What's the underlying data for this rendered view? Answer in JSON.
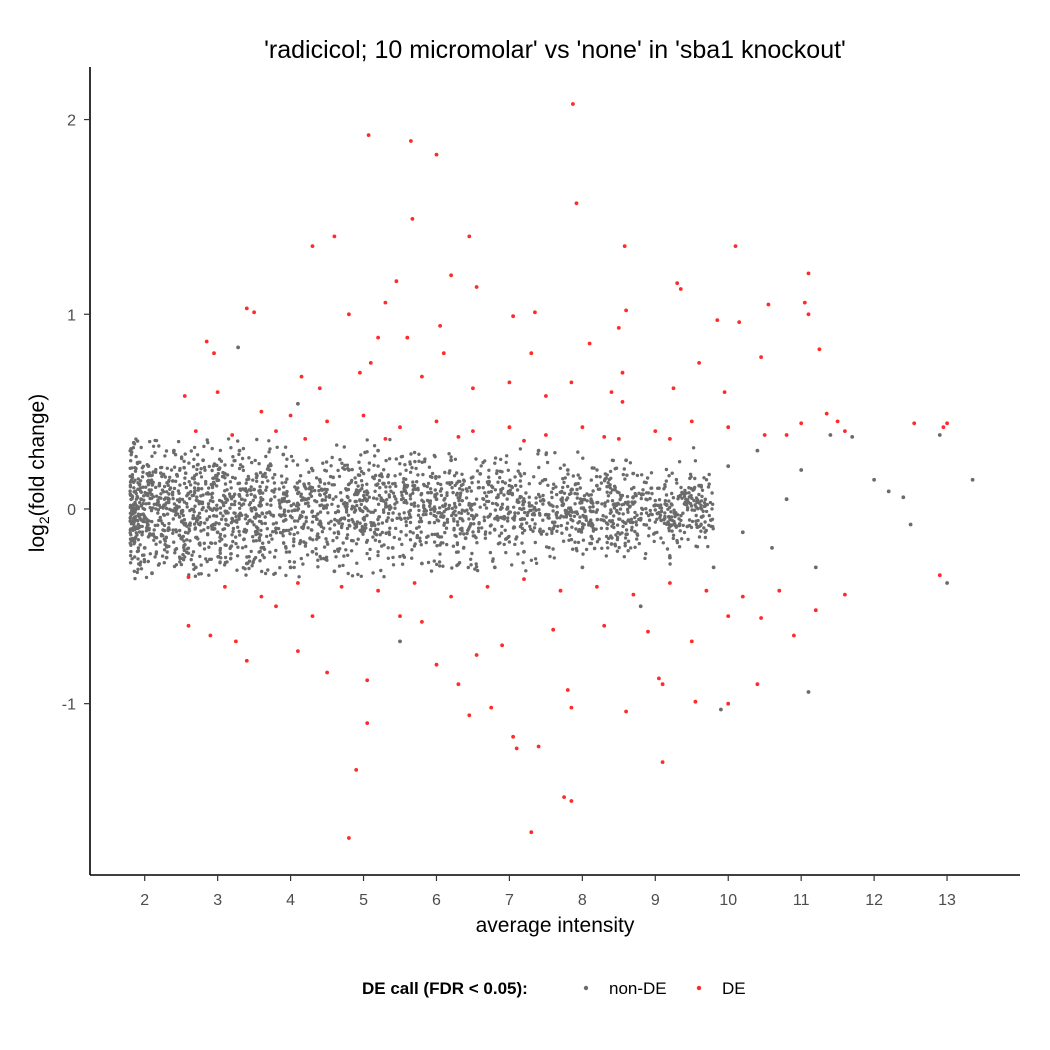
{
  "chart_data": {
    "type": "scatter",
    "title": "'radicicol; 10 micromolar' vs 'none' in 'sba1 knockout'",
    "xlabel": "average intensity",
    "ylabel_main": "log",
    "ylabel_sub": "2",
    "ylabel_rest": "(fold change)",
    "xlim": [
      1.25,
      14.0
    ],
    "ylim": [
      -1.88,
      2.27
    ],
    "xticks": [
      2,
      3,
      4,
      5,
      6,
      7,
      8,
      9,
      10,
      11,
      12,
      13
    ],
    "xtick_labels": [
      "2",
      "3",
      "4",
      "5",
      "6",
      "7",
      "8",
      "9",
      "10",
      "11",
      "12",
      "13"
    ],
    "yticks": [
      -1,
      0,
      1,
      2
    ],
    "ytick_labels": [
      "-1",
      "0",
      "1",
      "2"
    ],
    "grid": false,
    "legend": {
      "title": "DE call (FDR < 0.05):",
      "position": "bottom",
      "items": [
        {
          "label": "non-DE",
          "color": "#6b6b6b"
        },
        {
          "label": "DE",
          "color": "#ff2a2a"
        }
      ]
    },
    "series": [
      {
        "name": "non-DE",
        "color": "#6b6b6b",
        "note_points": "highlighted sample of ~3000 genes; bulk band rendered from listed points",
        "points": [
          [
            1.85,
            0.34
          ],
          [
            1.9,
            -0.1
          ],
          [
            1.95,
            0.05
          ],
          [
            2.0,
            -0.2
          ],
          [
            2.05,
            0.22
          ],
          [
            2.1,
            -0.33
          ],
          [
            2.2,
            0.12
          ],
          [
            2.3,
            -0.25
          ],
          [
            2.4,
            0.3
          ],
          [
            2.5,
            -0.15
          ],
          [
            2.6,
            0.08
          ],
          [
            2.7,
            -0.3
          ],
          [
            2.8,
            0.25
          ],
          [
            2.9,
            0.0
          ],
          [
            3.0,
            -0.12
          ],
          [
            3.1,
            0.18
          ],
          [
            3.2,
            -0.05
          ],
          [
            3.3,
            0.3
          ],
          [
            3.28,
            0.83
          ],
          [
            3.4,
            -0.28
          ],
          [
            3.5,
            0.1
          ],
          [
            3.6,
            -0.2
          ],
          [
            3.7,
            0.22
          ],
          [
            3.8,
            -0.1
          ],
          [
            3.9,
            0.28
          ],
          [
            4.0,
            -0.3
          ],
          [
            4.1,
            0.54
          ],
          [
            4.2,
            0.05
          ],
          [
            4.3,
            -0.22
          ],
          [
            4.4,
            0.15
          ],
          [
            4.6,
            -0.32
          ],
          [
            4.8,
            0.2
          ],
          [
            5.0,
            -0.05
          ],
          [
            5.2,
            0.3
          ],
          [
            5.4,
            -0.2
          ],
          [
            5.6,
            0.12
          ],
          [
            5.8,
            -0.28
          ],
          [
            6.0,
            0.05
          ],
          [
            6.2,
            0.25
          ],
          [
            6.4,
            -0.15
          ],
          [
            6.6,
            0.18
          ],
          [
            6.8,
            -0.3
          ],
          [
            7.0,
            0.08
          ],
          [
            7.2,
            -0.22
          ],
          [
            7.4,
            0.3
          ],
          [
            7.6,
            -0.1
          ],
          [
            7.8,
            0.2
          ],
          [
            8.0,
            -0.3
          ],
          [
            8.2,
            0.12
          ],
          [
            8.4,
            -0.18
          ],
          [
            8.6,
            0.25
          ],
          [
            8.8,
            -0.05
          ],
          [
            9.0,
            0.02
          ],
          [
            9.2,
            -0.25
          ],
          [
            9.4,
            0.08
          ],
          [
            9.6,
            0.12
          ],
          [
            9.8,
            -0.3
          ],
          [
            10.0,
            0.22
          ],
          [
            10.2,
            -0.12
          ],
          [
            10.4,
            0.3
          ],
          [
            10.6,
            -0.2
          ],
          [
            10.8,
            0.05
          ],
          [
            11.0,
            0.2
          ],
          [
            11.2,
            -0.3
          ],
          [
            11.4,
            0.38
          ],
          [
            11.7,
            0.37
          ],
          [
            12.0,
            0.15
          ],
          [
            12.2,
            0.09
          ],
          [
            12.4,
            0.06
          ],
          [
            12.5,
            -0.08
          ],
          [
            12.9,
            0.38
          ],
          [
            13.0,
            -0.38
          ],
          [
            13.35,
            0.15
          ],
          [
            9.9,
            -1.03
          ],
          [
            11.1,
            -0.94
          ],
          [
            5.5,
            -0.68
          ],
          [
            8.8,
            -0.5
          ]
        ]
      },
      {
        "name": "DE",
        "color": "#ff2a2a",
        "points": [
          [
            7.87,
            2.08
          ],
          [
            5.07,
            1.92
          ],
          [
            5.65,
            1.89
          ],
          [
            6.0,
            1.82
          ],
          [
            7.92,
            1.57
          ],
          [
            5.67,
            1.49
          ],
          [
            4.3,
            1.35
          ],
          [
            6.45,
            1.4
          ],
          [
            4.6,
            1.4
          ],
          [
            8.58,
            1.35
          ],
          [
            10.1,
            1.35
          ],
          [
            6.2,
            1.2
          ],
          [
            11.1,
            1.21
          ],
          [
            9.3,
            1.16
          ],
          [
            9.35,
            1.13
          ],
          [
            5.45,
            1.17
          ],
          [
            6.55,
            1.14
          ],
          [
            5.3,
            1.06
          ],
          [
            3.4,
            1.03
          ],
          [
            3.5,
            1.01
          ],
          [
            7.05,
            0.99
          ],
          [
            7.35,
            1.01
          ],
          [
            8.6,
            1.02
          ],
          [
            11.05,
            1.06
          ],
          [
            11.1,
            1.0
          ],
          [
            10.55,
            1.05
          ],
          [
            9.85,
            0.97
          ],
          [
            10.15,
            0.96
          ],
          [
            6.05,
            0.94
          ],
          [
            8.5,
            0.93
          ],
          [
            2.85,
            0.86
          ],
          [
            2.95,
            0.8
          ],
          [
            4.8,
            1.0
          ],
          [
            5.2,
            0.88
          ],
          [
            5.1,
            0.75
          ],
          [
            5.6,
            0.88
          ],
          [
            6.1,
            0.8
          ],
          [
            7.3,
            0.8
          ],
          [
            8.1,
            0.85
          ],
          [
            8.55,
            0.7
          ],
          [
            9.6,
            0.75
          ],
          [
            10.45,
            0.78
          ],
          [
            11.25,
            0.82
          ],
          [
            4.15,
            0.68
          ],
          [
            4.4,
            0.62
          ],
          [
            4.95,
            0.7
          ],
          [
            5.8,
            0.68
          ],
          [
            6.5,
            0.62
          ],
          [
            7.0,
            0.65
          ],
          [
            7.5,
            0.58
          ],
          [
            7.85,
            0.65
          ],
          [
            8.4,
            0.6
          ],
          [
            8.55,
            0.55
          ],
          [
            9.25,
            0.62
          ],
          [
            9.95,
            0.6
          ],
          [
            2.55,
            0.58
          ],
          [
            3.0,
            0.6
          ],
          [
            3.6,
            0.5
          ],
          [
            4.0,
            0.48
          ],
          [
            4.5,
            0.45
          ],
          [
            5.0,
            0.48
          ],
          [
            5.5,
            0.42
          ],
          [
            6.0,
            0.45
          ],
          [
            6.5,
            0.4
          ],
          [
            7.0,
            0.42
          ],
          [
            7.5,
            0.38
          ],
          [
            8.0,
            0.42
          ],
          [
            8.5,
            0.36
          ],
          [
            9.0,
            0.4
          ],
          [
            9.5,
            0.45
          ],
          [
            10.0,
            0.42
          ],
          [
            10.5,
            0.38
          ],
          [
            11.0,
            0.44
          ],
          [
            11.35,
            0.49
          ],
          [
            11.5,
            0.45
          ],
          [
            11.6,
            0.4
          ],
          [
            12.55,
            0.44
          ],
          [
            12.95,
            0.42
          ],
          [
            13.0,
            0.44
          ],
          [
            2.7,
            0.4
          ],
          [
            3.2,
            0.38
          ],
          [
            3.8,
            0.4
          ],
          [
            4.2,
            0.36
          ],
          [
            5.3,
            0.36
          ],
          [
            6.3,
            0.37
          ],
          [
            7.2,
            0.35
          ],
          [
            8.3,
            0.37
          ],
          [
            9.2,
            0.36
          ],
          [
            10.8,
            0.38
          ],
          [
            2.6,
            -0.35
          ],
          [
            3.1,
            -0.4
          ],
          [
            3.6,
            -0.45
          ],
          [
            4.1,
            -0.38
          ],
          [
            4.7,
            -0.4
          ],
          [
            5.2,
            -0.42
          ],
          [
            5.7,
            -0.38
          ],
          [
            6.2,
            -0.45
          ],
          [
            6.7,
            -0.4
          ],
          [
            7.2,
            -0.36
          ],
          [
            7.7,
            -0.42
          ],
          [
            8.2,
            -0.4
          ],
          [
            8.7,
            -0.44
          ],
          [
            9.2,
            -0.38
          ],
          [
            9.7,
            -0.42
          ],
          [
            10.2,
            -0.45
          ],
          [
            10.7,
            -0.42
          ],
          [
            11.2,
            -0.52
          ],
          [
            11.6,
            -0.44
          ],
          [
            12.9,
            -0.34
          ],
          [
            2.6,
            -0.6
          ],
          [
            2.9,
            -0.65
          ],
          [
            3.25,
            -0.68
          ],
          [
            3.4,
            -0.78
          ],
          [
            4.1,
            -0.73
          ],
          [
            4.5,
            -0.84
          ],
          [
            5.05,
            -0.88
          ],
          [
            5.05,
            -1.1
          ],
          [
            4.9,
            -1.34
          ],
          [
            4.8,
            -1.69
          ],
          [
            5.5,
            -0.55
          ],
          [
            6.0,
            -0.8
          ],
          [
            6.3,
            -0.9
          ],
          [
            6.45,
            -1.06
          ],
          [
            6.75,
            -1.02
          ],
          [
            7.05,
            -1.17
          ],
          [
            7.1,
            -1.23
          ],
          [
            7.4,
            -1.22
          ],
          [
            7.3,
            -1.66
          ],
          [
            7.75,
            -1.48
          ],
          [
            7.85,
            -1.5
          ],
          [
            7.8,
            -0.93
          ],
          [
            7.85,
            -1.02
          ],
          [
            8.6,
            -1.04
          ],
          [
            9.05,
            -0.87
          ],
          [
            9.1,
            -0.9
          ],
          [
            9.1,
            -1.3
          ],
          [
            9.55,
            -0.99
          ],
          [
            10.0,
            -1.0
          ],
          [
            10.4,
            -0.9
          ],
          [
            10.9,
            -0.65
          ],
          [
            10.45,
            -0.56
          ],
          [
            10.0,
            -0.55
          ],
          [
            9.5,
            -0.68
          ],
          [
            6.9,
            -0.7
          ],
          [
            7.6,
            -0.62
          ],
          [
            8.3,
            -0.6
          ],
          [
            8.9,
            -0.63
          ],
          [
            5.8,
            -0.58
          ],
          [
            4.3,
            -0.55
          ],
          [
            3.8,
            -0.5
          ],
          [
            6.55,
            -0.75
          ]
        ]
      }
    ]
  }
}
